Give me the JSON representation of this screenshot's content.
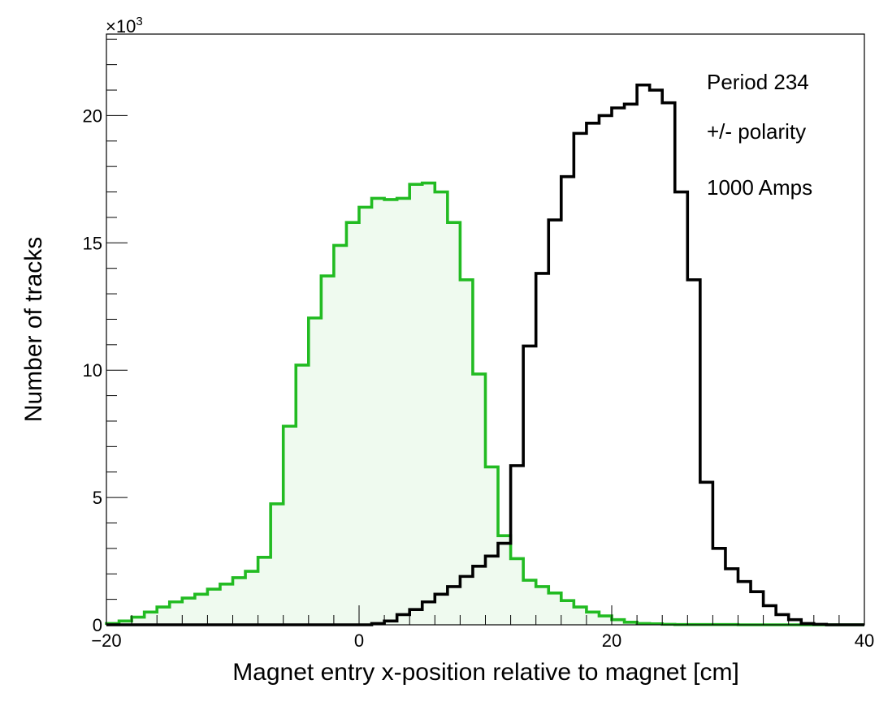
{
  "chart_data": {
    "type": "histogram",
    "xlabel": "Magnet entry x-position relative to magnet [cm]",
    "ylabel": "Number of tracks",
    "y_multiplier_label": "×10",
    "y_multiplier_exponent": "3",
    "xlim": [
      -20,
      40
    ],
    "ylim": [
      0,
      23.2
    ],
    "xticks": [
      -20,
      0,
      20,
      40
    ],
    "xtick_labels": [
      "−20",
      "0",
      "20",
      "40"
    ],
    "yticks": [
      0,
      5,
      10,
      15,
      20
    ],
    "ytick_labels": [
      "0",
      "5",
      "10",
      "15",
      "20"
    ],
    "bin_edges_start": -20,
    "bin_width": 1,
    "annotations": [
      "Period 234",
      "+/- polarity",
      "1000 Amps"
    ],
    "series": [
      {
        "color": "#22bb22",
        "fill": "#effaef",
        "values": [
          0.05,
          0.15,
          0.3,
          0.5,
          0.7,
          0.9,
          1.05,
          1.2,
          1.4,
          1.6,
          1.85,
          2.1,
          2.65,
          4.75,
          7.8,
          10.2,
          12.05,
          13.7,
          14.9,
          15.8,
          16.4,
          16.75,
          16.7,
          16.75,
          17.3,
          17.35,
          17.0,
          15.8,
          13.55,
          9.85,
          6.2,
          3.5,
          2.6,
          1.75,
          1.5,
          1.25,
          0.95,
          0.7,
          0.5,
          0.35,
          0.2,
          0.1,
          0.05,
          0.04,
          0.02,
          0.01,
          0.01,
          0.01,
          0.01,
          0.01,
          0.0,
          0.0,
          0.0,
          0.0,
          0.0,
          0.0,
          0.0,
          0.0,
          0.0,
          0.0
        ]
      },
      {
        "color": "#000000",
        "values": [
          0.0,
          0.0,
          0.0,
          0.0,
          0.0,
          0.0,
          0.0,
          0.0,
          0.0,
          0.0,
          0.0,
          0.0,
          0.0,
          0.0,
          0.0,
          0.0,
          0.0,
          0.0,
          0.0,
          0.0,
          0.0,
          0.05,
          0.15,
          0.4,
          0.6,
          0.9,
          1.2,
          1.5,
          1.9,
          2.3,
          2.7,
          3.2,
          6.25,
          10.95,
          13.8,
          15.9,
          17.6,
          19.3,
          19.7,
          20.0,
          20.3,
          20.45,
          21.2,
          21.0,
          20.5,
          17.0,
          13.55,
          5.6,
          3.0,
          2.2,
          1.7,
          1.3,
          0.75,
          0.4,
          0.2,
          0.05,
          0.02,
          0.0,
          0.0,
          0.0
        ]
      }
    ]
  }
}
